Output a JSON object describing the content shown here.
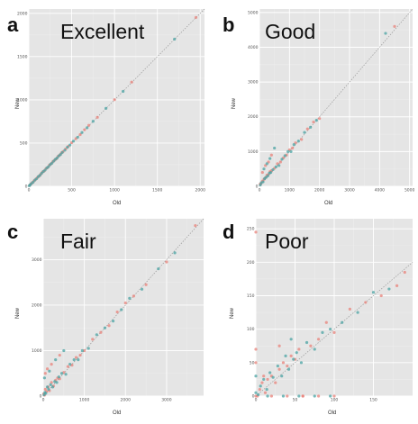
{
  "chart_data": [
    {
      "id": "a",
      "type": "scatter",
      "letter": "a",
      "title": "Excellent",
      "xlabel": "Old",
      "ylabel": "New",
      "xlim": [
        0,
        2050
      ],
      "ylim": [
        0,
        2050
      ],
      "xticks": [
        "0",
        "500",
        "1000",
        "1500",
        "2000"
      ],
      "yticks": [
        "0",
        "500",
        "1000",
        "1500",
        "2000"
      ],
      "xtick_values": [
        0,
        500,
        1000,
        1500,
        2000
      ],
      "ytick_values": [
        0,
        500,
        1000,
        1500,
        2000
      ],
      "series": [
        {
          "color": "#e8827a",
          "x": [
            10,
            25,
            40,
            60,
            80,
            100,
            120,
            140,
            160,
            180,
            200,
            220,
            240,
            260,
            280,
            300,
            320,
            340,
            360,
            380,
            400,
            430,
            460,
            500,
            550,
            600,
            650,
            700,
            800,
            1000,
            1200,
            1950
          ],
          "y": [
            12,
            28,
            42,
            63,
            82,
            102,
            118,
            142,
            165,
            178,
            205,
            218,
            245,
            262,
            285,
            302,
            318,
            345,
            362,
            385,
            402,
            432,
            462,
            505,
            552,
            598,
            655,
            705,
            798,
            1002,
            1205,
            1952
          ]
        },
        {
          "color": "#4aa3a3",
          "x": [
            5,
            15,
            30,
            50,
            70,
            90,
            110,
            130,
            150,
            170,
            190,
            210,
            230,
            250,
            270,
            290,
            310,
            330,
            350,
            370,
            390,
            420,
            450,
            480,
            520,
            570,
            620,
            680,
            750,
            900,
            1100,
            1700
          ],
          "y": [
            7,
            17,
            32,
            48,
            72,
            88,
            112,
            128,
            152,
            172,
            188,
            212,
            228,
            252,
            268,
            292,
            312,
            328,
            352,
            368,
            392,
            418,
            452,
            478,
            522,
            568,
            622,
            678,
            752,
            902,
            1098,
            1702
          ]
        }
      ]
    },
    {
      "id": "b",
      "type": "scatter",
      "letter": "b",
      "title": "Good",
      "xlabel": "Old",
      "ylabel": "New",
      "xlim": [
        0,
        5100
      ],
      "ylim": [
        0,
        5100
      ],
      "xticks": [
        "0",
        "1000",
        "2000",
        "3000",
        "4000",
        "5000"
      ],
      "yticks": [
        "0",
        "1000",
        "2000",
        "3000",
        "4000",
        "5000"
      ],
      "xtick_values": [
        0,
        1000,
        2000,
        3000,
        4000,
        5000
      ],
      "ytick_values": [
        0,
        1000,
        2000,
        3000,
        4000,
        5000
      ],
      "series": [
        {
          "color": "#e8827a",
          "x": [
            20,
            50,
            100,
            150,
            200,
            250,
            300,
            350,
            400,
            500,
            600,
            700,
            800,
            900,
            1000,
            1100,
            1200,
            1400,
            1600,
            1800,
            2000,
            100,
            200,
            300,
            400,
            4500
          ],
          "y": [
            60,
            80,
            150,
            200,
            250,
            320,
            340,
            420,
            450,
            520,
            650,
            700,
            820,
            900,
            1050,
            1100,
            1250,
            1350,
            1650,
            1850,
            1950,
            400,
            600,
            700,
            900,
            4600
          ]
        },
        {
          "color": "#4aa3a3",
          "x": [
            30,
            60,
            120,
            170,
            220,
            280,
            330,
            380,
            450,
            550,
            650,
            750,
            850,
            950,
            1050,
            1150,
            1300,
            1500,
            1700,
            1900,
            150,
            250,
            350,
            500,
            4200
          ],
          "y": [
            40,
            100,
            130,
            220,
            260,
            300,
            380,
            400,
            480,
            560,
            600,
            780,
            880,
            1000,
            1000,
            1200,
            1300,
            1550,
            1700,
            1900,
            500,
            650,
            800,
            1100,
            4400
          ]
        }
      ]
    },
    {
      "id": "c",
      "type": "scatter",
      "letter": "c",
      "title": "Fair",
      "xlabel": "Old",
      "ylabel": "New",
      "xlim": [
        0,
        3900
      ],
      "ylim": [
        0,
        3900
      ],
      "xticks": [
        "0",
        "1000",
        "2000",
        "3000"
      ],
      "yticks": [
        "0",
        "1000",
        "2000",
        "3000"
      ],
      "xtick_values": [
        0,
        1000,
        2000,
        3000
      ],
      "ytick_values": [
        0,
        1000,
        2000,
        3000
      ],
      "series": [
        {
          "color": "#e8827a",
          "x": [
            10,
            30,
            50,
            80,
            120,
            150,
            200,
            250,
            300,
            350,
            400,
            500,
            600,
            700,
            800,
            900,
            1000,
            1200,
            1400,
            1600,
            1800,
            2000,
            2200,
            2500,
            3000,
            3700,
            50,
            100,
            200,
            400
          ],
          "y": [
            50,
            20,
            150,
            100,
            200,
            120,
            300,
            220,
            350,
            400,
            380,
            520,
            650,
            680,
            850,
            900,
            1000,
            1250,
            1400,
            1550,
            1850,
            2050,
            2200,
            2450,
            2950,
            3750,
            500,
            600,
            700,
            900
          ]
        },
        {
          "color": "#4aa3a3",
          "x": [
            20,
            40,
            60,
            100,
            130,
            180,
            230,
            280,
            330,
            380,
            450,
            550,
            650,
            750,
            850,
            950,
            1100,
            1300,
            1500,
            1700,
            1900,
            2100,
            2400,
            2800,
            3200,
            30,
            150,
            300,
            500
          ],
          "y": [
            30,
            80,
            60,
            200,
            150,
            250,
            200,
            320,
            300,
            420,
            500,
            480,
            700,
            800,
            800,
            1000,
            1050,
            1350,
            1500,
            1650,
            1900,
            2150,
            2350,
            2800,
            3150,
            400,
            550,
            800,
            1000
          ]
        }
      ]
    },
    {
      "id": "d",
      "type": "scatter",
      "letter": "d",
      "title": "Poor",
      "xlabel": "Old",
      "ylabel": "New",
      "xlim": [
        0,
        200
      ],
      "ylim": [
        0,
        265
      ],
      "xticks": [
        "0",
        "50",
        "100",
        "150"
      ],
      "yticks": [
        "0",
        "50",
        "100",
        "150",
        "200",
        "250"
      ],
      "xtick_values": [
        0,
        50,
        100,
        150
      ],
      "ytick_values": [
        0,
        50,
        100,
        150,
        200,
        250
      ],
      "series": [
        {
          "color": "#e8827a",
          "x": [
            0,
            0,
            0,
            0,
            2,
            5,
            8,
            10,
            12,
            15,
            20,
            25,
            30,
            35,
            40,
            45,
            50,
            55,
            60,
            70,
            80,
            90,
            100,
            120,
            140,
            160,
            180,
            190,
            20,
            40,
            60,
            80,
            100,
            30
          ],
          "y": [
            0,
            50,
            70,
            245,
            0,
            10,
            20,
            30,
            5,
            25,
            30,
            20,
            40,
            50,
            45,
            60,
            55,
            70,
            0,
            75,
            85,
            110,
            95,
            130,
            140,
            150,
            165,
            185,
            0,
            0,
            0,
            0,
            0,
            75
          ]
        },
        {
          "color": "#4aa3a3",
          "x": [
            0,
            0,
            3,
            6,
            10,
            14,
            18,
            22,
            28,
            33,
            38,
            42,
            48,
            52,
            58,
            65,
            75,
            85,
            95,
            110,
            130,
            150,
            170,
            15,
            35,
            55,
            75,
            95,
            45
          ],
          "y": [
            5,
            30,
            2,
            15,
            25,
            10,
            35,
            28,
            45,
            30,
            60,
            40,
            55,
            65,
            50,
            80,
            70,
            95,
            100,
            110,
            125,
            155,
            160,
            0,
            0,
            0,
            0,
            0,
            85
          ]
        }
      ]
    }
  ]
}
